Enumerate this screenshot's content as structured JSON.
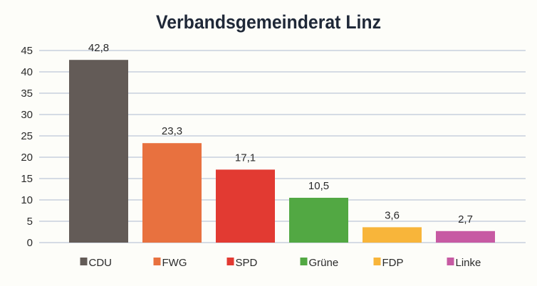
{
  "chart_data": {
    "type": "bar",
    "title": "Verbandsgemeinderat Linz",
    "xlabel": "",
    "ylabel": "",
    "categories": [
      "CDU",
      "FWG",
      "SPD",
      "Grüne",
      "FDP",
      "Linke"
    ],
    "values": [
      42.8,
      23.3,
      17.1,
      10.5,
      3.6,
      2.7
    ],
    "value_labels": [
      "42,8",
      "23,3",
      "17,1",
      "10,5",
      "3,6",
      "2,7"
    ],
    "colors": [
      "#635b57",
      "#e8713f",
      "#e23a32",
      "#52a843",
      "#f8b53a",
      "#c75aa3"
    ],
    "ylim": [
      0,
      45
    ],
    "yticks": [
      0,
      5,
      10,
      15,
      20,
      25,
      30,
      35,
      40,
      45
    ],
    "grid": true,
    "legend": "bottom",
    "background": "#fdfdf9",
    "grid_color": "#c8d0dd"
  }
}
